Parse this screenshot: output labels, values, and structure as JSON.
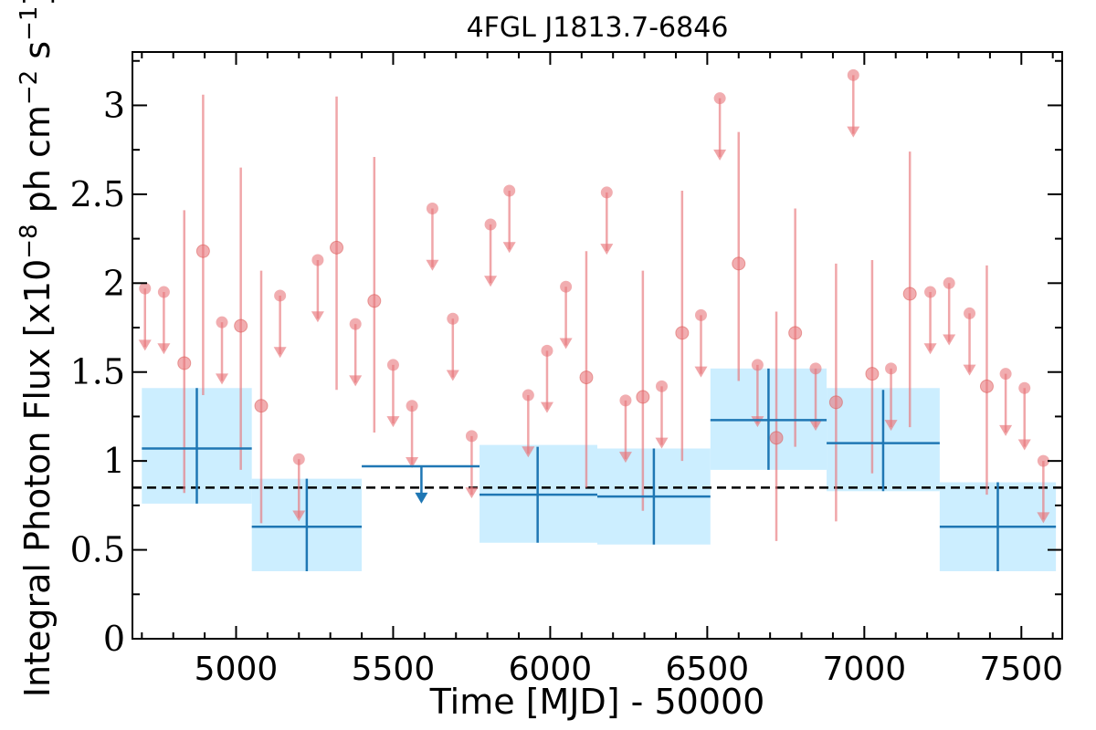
{
  "chart_data": {
    "type": "scatter",
    "title": "4FGL J1813.7-6846",
    "xlabel": "Time [MJD] - 50000",
    "ylabel": "Integral Photon Flux [x10",
    "ylabel_exp": "−8",
    "ylabel_mid": " ph cm",
    "ylabel_exp2": "−2",
    "ylabel_mid2": " s",
    "ylabel_exp3": "−1",
    "ylabel_end": "]",
    "xlim": [
      4670,
      7630
    ],
    "ylim": [
      0,
      3.3
    ],
    "x_ticks": [
      {
        "v": 5000,
        "label": "5000"
      },
      {
        "v": 5500,
        "label": "5500"
      },
      {
        "v": 6000,
        "label": "6000"
      },
      {
        "v": 6500,
        "label": "6500"
      },
      {
        "v": 7000,
        "label": "7000"
      },
      {
        "v": 7500,
        "label": "7500"
      }
    ],
    "y_ticks": [
      {
        "v": 0,
        "label": "0"
      },
      {
        "v": 0.5,
        "label": "0.5"
      },
      {
        "v": 1.0,
        "label": "1"
      },
      {
        "v": 1.5,
        "label": "1.5"
      },
      {
        "v": 2.0,
        "label": "2"
      },
      {
        "v": 2.5,
        "label": "2.5"
      },
      {
        "v": 3.0,
        "label": "3"
      }
    ],
    "mean_flux": 0.85,
    "colors": {
      "short_bin": "#e8777b",
      "long_bin": "#1f77b4",
      "band": "#cceeff",
      "mean_line": "#000000"
    },
    "long_bins": [
      {
        "x0": 4700,
        "x1": 5050,
        "xc": 4875,
        "y": 1.07,
        "lo": 0.76,
        "hi": 1.41,
        "band_lo": 0.76,
        "band_hi": 1.41,
        "upper_limit": false
      },
      {
        "x0": 5050,
        "x1": 5400,
        "xc": 5225,
        "y": 0.63,
        "lo": 0.38,
        "hi": 0.9,
        "band_lo": 0.38,
        "band_hi": 0.9,
        "upper_limit": false
      },
      {
        "x0": 5400,
        "x1": 5775,
        "xc": 5590,
        "y": 0.97,
        "upper_limit": true
      },
      {
        "x0": 5775,
        "x1": 6150,
        "xc": 5960,
        "y": 0.81,
        "lo": 0.54,
        "hi": 1.08,
        "band_lo": 0.54,
        "band_hi": 1.09,
        "upper_limit": false
      },
      {
        "x0": 6150,
        "x1": 6510,
        "xc": 6330,
        "y": 0.8,
        "lo": 0.53,
        "hi": 1.07,
        "band_lo": 0.53,
        "band_hi": 1.07,
        "upper_limit": false
      },
      {
        "x0": 6510,
        "x1": 6880,
        "xc": 6695,
        "y": 1.23,
        "lo": 0.95,
        "hi": 1.52,
        "band_lo": 0.95,
        "band_hi": 1.52,
        "upper_limit": false
      },
      {
        "x0": 6880,
        "x1": 7240,
        "xc": 7060,
        "y": 1.1,
        "lo": 0.83,
        "hi": 1.4,
        "band_lo": 0.83,
        "band_hi": 1.41,
        "upper_limit": false
      },
      {
        "x0": 7240,
        "x1": 7610,
        "xc": 7425,
        "y": 0.63,
        "lo": 0.38,
        "hi": 0.88,
        "band_lo": 0.38,
        "band_hi": 0.88,
        "upper_limit": false
      }
    ],
    "short_bins": [
      {
        "x": 4710,
        "y": 1.97,
        "upper_limit": true
      },
      {
        "x": 4770,
        "y": 1.95,
        "upper_limit": true
      },
      {
        "x": 4835,
        "y": 1.55,
        "lo": 0.82,
        "hi": 2.41,
        "upper_limit": false
      },
      {
        "x": 4895,
        "y": 2.18,
        "lo": 1.37,
        "hi": 3.06,
        "upper_limit": false
      },
      {
        "x": 4955,
        "y": 1.78,
        "upper_limit": true
      },
      {
        "x": 5015,
        "y": 1.76,
        "lo": 0.95,
        "hi": 2.65,
        "upper_limit": false
      },
      {
        "x": 5080,
        "y": 1.31,
        "lo": 0.65,
        "hi": 2.07,
        "upper_limit": false
      },
      {
        "x": 5140,
        "y": 1.93,
        "upper_limit": true
      },
      {
        "x": 5200,
        "y": 1.01,
        "upper_limit": true
      },
      {
        "x": 5260,
        "y": 2.13,
        "upper_limit": true
      },
      {
        "x": 5320,
        "y": 2.2,
        "lo": 1.4,
        "hi": 3.05,
        "upper_limit": false
      },
      {
        "x": 5380,
        "y": 1.77,
        "upper_limit": true
      },
      {
        "x": 5440,
        "y": 1.9,
        "lo": 1.16,
        "hi": 2.71,
        "upper_limit": false
      },
      {
        "x": 5500,
        "y": 1.54,
        "upper_limit": true
      },
      {
        "x": 5560,
        "y": 1.31,
        "upper_limit": true
      },
      {
        "x": 5625,
        "y": 2.42,
        "upper_limit": true
      },
      {
        "x": 5690,
        "y": 1.8,
        "upper_limit": true
      },
      {
        "x": 5750,
        "y": 1.14,
        "upper_limit": true
      },
      {
        "x": 5810,
        "y": 2.33,
        "upper_limit": true
      },
      {
        "x": 5870,
        "y": 2.52,
        "upper_limit": true
      },
      {
        "x": 5930,
        "y": 1.37,
        "upper_limit": true
      },
      {
        "x": 5990,
        "y": 1.62,
        "upper_limit": true
      },
      {
        "x": 6050,
        "y": 1.98,
        "upper_limit": true
      },
      {
        "x": 6115,
        "y": 1.47,
        "lo": 0.85,
        "hi": 2.18,
        "upper_limit": false
      },
      {
        "x": 6180,
        "y": 2.51,
        "upper_limit": true
      },
      {
        "x": 6240,
        "y": 1.34,
        "upper_limit": true
      },
      {
        "x": 6295,
        "y": 1.36,
        "lo": 0.72,
        "hi": 2.07,
        "upper_limit": false
      },
      {
        "x": 6355,
        "y": 1.42,
        "upper_limit": true
      },
      {
        "x": 6420,
        "y": 1.72,
        "lo": 1.0,
        "hi": 2.52,
        "upper_limit": false
      },
      {
        "x": 6480,
        "y": 1.82,
        "upper_limit": true
      },
      {
        "x": 6540,
        "y": 3.04,
        "upper_limit": true
      },
      {
        "x": 6600,
        "y": 2.11,
        "lo": 1.45,
        "hi": 2.85,
        "upper_limit": false
      },
      {
        "x": 6660,
        "y": 1.54,
        "upper_limit": true
      },
      {
        "x": 6720,
        "y": 1.13,
        "lo": 0.55,
        "hi": 1.84,
        "upper_limit": false
      },
      {
        "x": 6780,
        "y": 1.72,
        "lo": 1.08,
        "hi": 2.42,
        "upper_limit": false
      },
      {
        "x": 6845,
        "y": 1.52,
        "upper_limit": true
      },
      {
        "x": 6910,
        "y": 1.33,
        "lo": 0.66,
        "hi": 2.11,
        "upper_limit": false
      },
      {
        "x": 6965,
        "y": 3.17,
        "upper_limit": true
      },
      {
        "x": 7025,
        "y": 1.49,
        "lo": 0.93,
        "hi": 2.13,
        "upper_limit": false
      },
      {
        "x": 7085,
        "y": 1.52,
        "upper_limit": true
      },
      {
        "x": 7145,
        "y": 1.94,
        "lo": 1.19,
        "hi": 2.74,
        "upper_limit": false
      },
      {
        "x": 7210,
        "y": 1.95,
        "upper_limit": true
      },
      {
        "x": 7270,
        "y": 2.0,
        "upper_limit": true
      },
      {
        "x": 7335,
        "y": 1.83,
        "upper_limit": true
      },
      {
        "x": 7390,
        "y": 1.42,
        "lo": 0.81,
        "hi": 2.1,
        "upper_limit": false
      },
      {
        "x": 7450,
        "y": 1.49,
        "upper_limit": true
      },
      {
        "x": 7510,
        "y": 1.41,
        "upper_limit": true
      },
      {
        "x": 7570,
        "y": 1.0,
        "upper_limit": true
      }
    ]
  }
}
